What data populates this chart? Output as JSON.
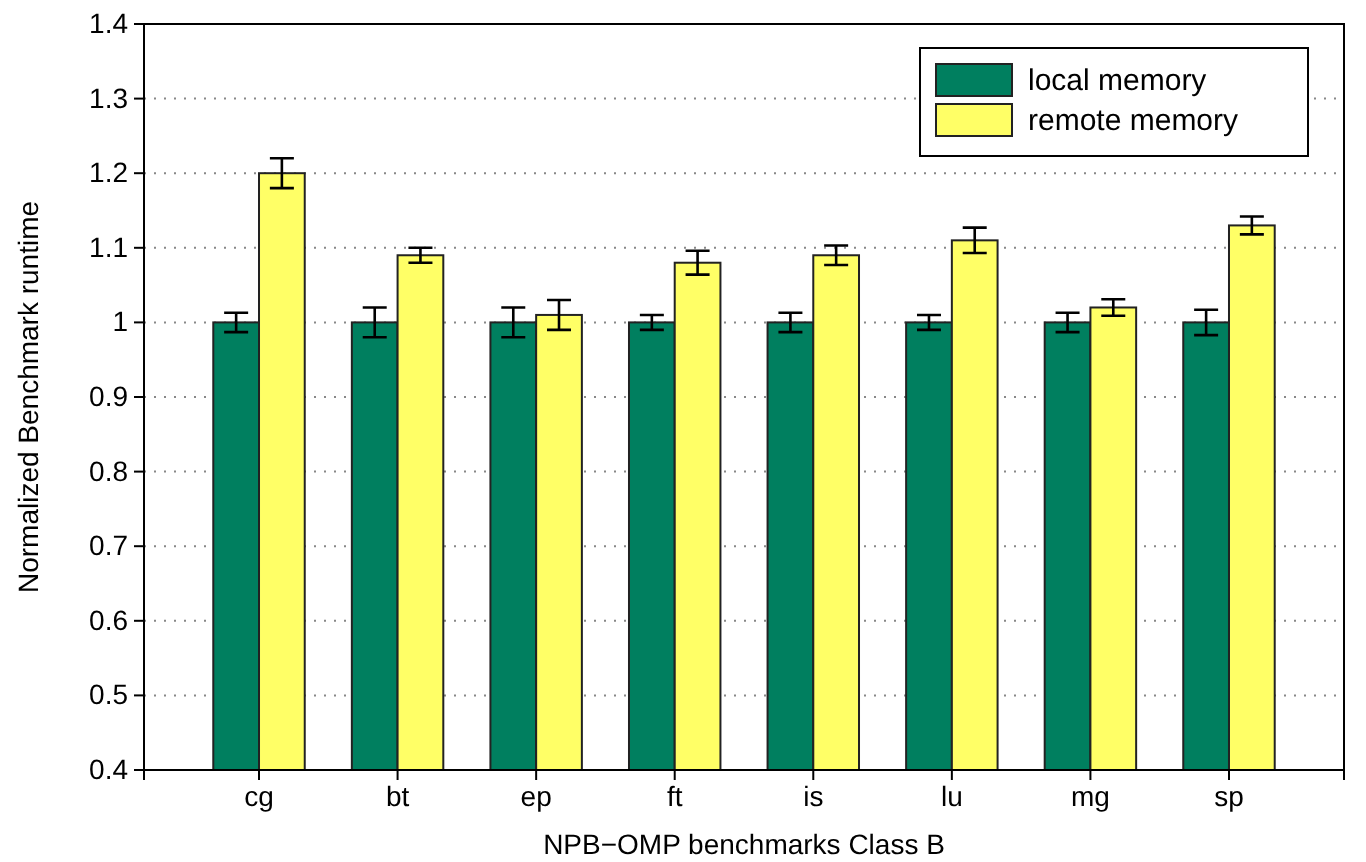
{
  "chart_data": {
    "type": "bar",
    "xlabel": "NPB−OMP benchmarks Class B",
    "ylabel": "Normalized Benchmark runtime",
    "categories": [
      "cg",
      "bt",
      "ep",
      "ft",
      "is",
      "lu",
      "mg",
      "sp"
    ],
    "series": [
      {
        "name": "local memory",
        "color": "#007f5f",
        "values": [
          1,
          1,
          1,
          1,
          1,
          1,
          1,
          1
        ],
        "errors": [
          0.013,
          0.02,
          0.02,
          0.01,
          0.013,
          0.01,
          0.013,
          0.017
        ]
      },
      {
        "name": "remote memory",
        "color": "#ffff66",
        "values": [
          1.2,
          1.09,
          1.01,
          1.08,
          1.09,
          1.11,
          1.02,
          1.13
        ],
        "errors": [
          0.02,
          0.01,
          0.02,
          0.016,
          0.013,
          0.017,
          0.011,
          0.012
        ]
      }
    ],
    "ylim": [
      0.4,
      1.4
    ],
    "yticks": [
      {
        "value": 0.4,
        "label": "0.4"
      },
      {
        "value": 0.5,
        "label": "0.5"
      },
      {
        "value": 0.6,
        "label": "0.6"
      },
      {
        "value": 0.7,
        "label": "0.7"
      },
      {
        "value": 0.8,
        "label": "0.8"
      },
      {
        "value": 0.9,
        "label": "0.9"
      },
      1,
      {
        "value": 1.1,
        "label": "1.1"
      },
      {
        "value": 1.2,
        "label": "1.2"
      },
      {
        "value": 1.3,
        "label": "1.3"
      },
      {
        "value": 1.4,
        "label": "1.4"
      }
    ],
    "grid": "y",
    "legend": "top right"
  }
}
